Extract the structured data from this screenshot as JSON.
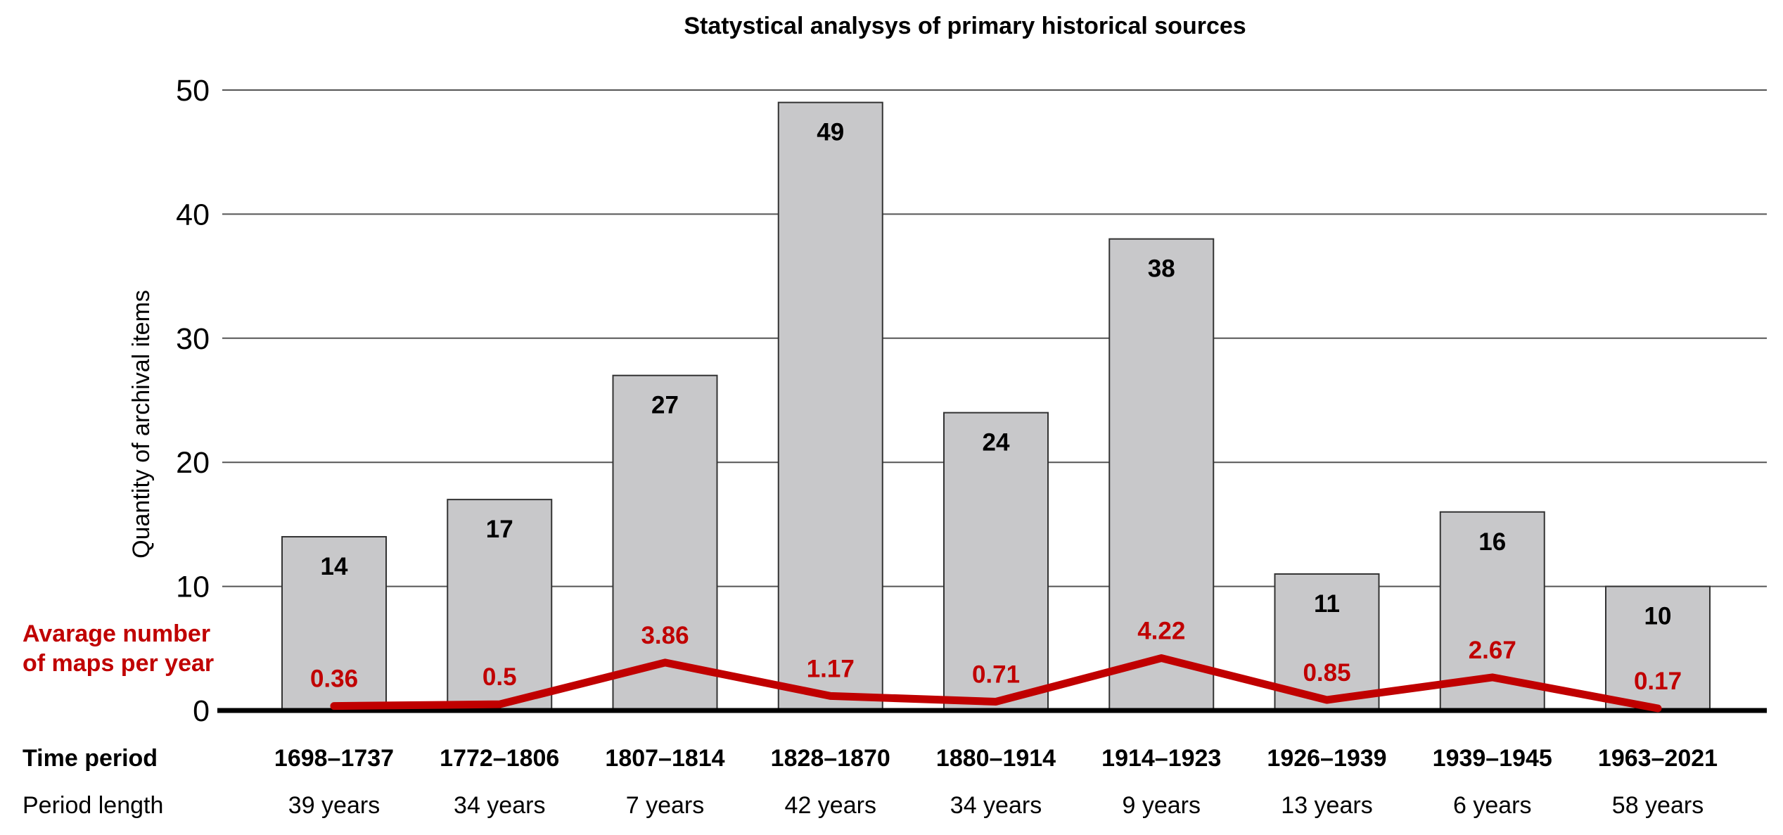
{
  "chart_data": {
    "type": "bar",
    "title": "Statystical analysys of primary historical sources",
    "ylabel": "Quantity of archival items",
    "ylim": [
      0,
      50
    ],
    "yticks": [
      0,
      10,
      20,
      30,
      40,
      50
    ],
    "grid": true,
    "categories": [
      "1698–1737",
      "1772–1806",
      "1807–1814",
      "1828–1870",
      "1880–1914",
      "1914–1923",
      "1926–1939",
      "1939–1945",
      "1963–2021"
    ],
    "period_lengths": [
      "39 years",
      "34 years",
      "7 years",
      "42 years",
      "34 years",
      "9 years",
      "13 years",
      "6 years",
      "58 years"
    ],
    "row_labels": {
      "time_period": "Time period",
      "period_length": "Period length"
    },
    "series": [
      {
        "type": "bar",
        "values": [
          14,
          17,
          27,
          49,
          24,
          38,
          11,
          16,
          10
        ],
        "color": "#c8c8ca"
      },
      {
        "type": "line",
        "name": "Avarage number of maps per year",
        "name_lines": [
          "Avarage number",
          "of maps per year"
        ],
        "values": [
          0.36,
          0.5,
          3.86,
          1.17,
          0.71,
          4.22,
          0.85,
          2.67,
          0.17
        ],
        "labels": [
          "0.36",
          "0.5",
          "3.86",
          "1.17",
          "0.71",
          "4.22",
          "0.85",
          "2.67",
          "0.17"
        ],
        "color": "#c00000"
      }
    ]
  }
}
